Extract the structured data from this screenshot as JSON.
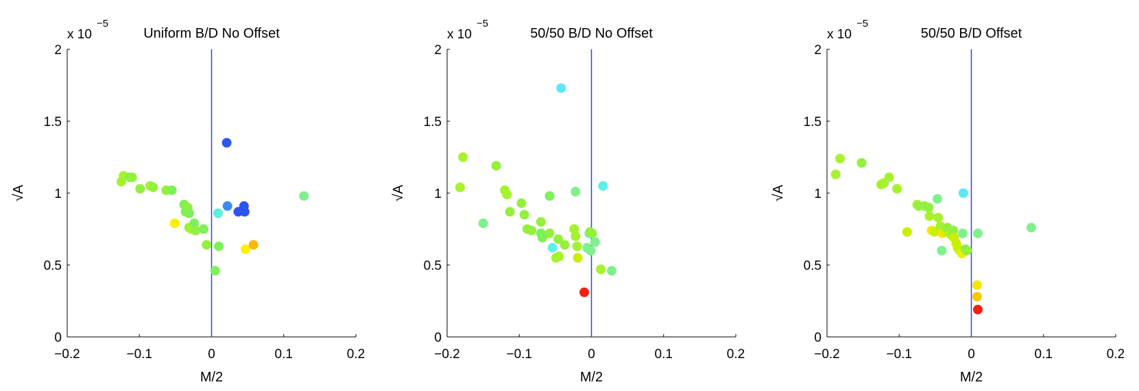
{
  "chart_data": [
    {
      "type": "scatter",
      "title": "Uniform B/D No Offset",
      "xlabel": "M/2",
      "ylabel": "√A",
      "y_multiplier": "x 10",
      "y_multiplier_exp": "−5",
      "xlim": [
        -0.2,
        0.2
      ],
      "ylim": [
        0,
        2
      ],
      "xticks": [
        "−0.2",
        "−0.1",
        "0",
        "0.1",
        "0.2"
      ],
      "yticks": [
        "0",
        "0.5",
        "1",
        "1.5",
        "2"
      ],
      "vline_x": 0,
      "vline_color": "#2340ff",
      "points": [
        {
          "x": -0.125,
          "y": 1.08,
          "color": "#a6f22c"
        },
        {
          "x": -0.122,
          "y": 1.12,
          "color": "#a6f22c"
        },
        {
          "x": -0.113,
          "y": 1.11,
          "color": "#7ef05a"
        },
        {
          "x": -0.11,
          "y": 1.11,
          "color": "#94f03e"
        },
        {
          "x": -0.099,
          "y": 1.03,
          "color": "#94f03e"
        },
        {
          "x": -0.085,
          "y": 1.05,
          "color": "#a6f22c"
        },
        {
          "x": -0.081,
          "y": 1.04,
          "color": "#94f03e"
        },
        {
          "x": -0.063,
          "y": 1.02,
          "color": "#94f03e"
        },
        {
          "x": -0.055,
          "y": 1.02,
          "color": "#7ef05a"
        },
        {
          "x": -0.051,
          "y": 0.79,
          "color": "#ffef00"
        },
        {
          "x": -0.038,
          "y": 0.92,
          "color": "#7ef05a"
        },
        {
          "x": -0.036,
          "y": 0.87,
          "color": "#7ef05a"
        },
        {
          "x": -0.033,
          "y": 0.9,
          "color": "#94f03e"
        },
        {
          "x": -0.031,
          "y": 0.86,
          "color": "#7ef05a"
        },
        {
          "x": -0.031,
          "y": 0.76,
          "color": "#94f03e"
        },
        {
          "x": -0.028,
          "y": 0.75,
          "color": "#a6f22c"
        },
        {
          "x": -0.024,
          "y": 0.79,
          "color": "#7ef05a"
        },
        {
          "x": -0.022,
          "y": 0.74,
          "color": "#94f03e"
        },
        {
          "x": -0.011,
          "y": 0.75,
          "color": "#7ef05a"
        },
        {
          "x": -0.007,
          "y": 0.64,
          "color": "#94f03e"
        },
        {
          "x": 0.005,
          "y": 0.46,
          "color": "#7ef05a"
        },
        {
          "x": 0.009,
          "y": 0.86,
          "color": "#5cf0d6"
        },
        {
          "x": 0.01,
          "y": 0.63,
          "color": "#7ef05a"
        },
        {
          "x": 0.021,
          "y": 1.35,
          "color": "#2d55ee"
        },
        {
          "x": 0.022,
          "y": 0.91,
          "color": "#3a8cf0"
        },
        {
          "x": 0.037,
          "y": 0.87,
          "color": "#2d55ee"
        },
        {
          "x": 0.045,
          "y": 0.91,
          "color": "#2d55ee"
        },
        {
          "x": 0.046,
          "y": 0.87,
          "color": "#2d55ee"
        },
        {
          "x": 0.047,
          "y": 0.61,
          "color": "#ffef00"
        },
        {
          "x": 0.058,
          "y": 0.64,
          "color": "#ffb800"
        },
        {
          "x": 0.128,
          "y": 0.98,
          "color": "#7ef08c"
        }
      ]
    },
    {
      "type": "scatter",
      "title": "50/50 B/D No Offset",
      "xlabel": "M/2",
      "ylabel": "√A",
      "y_multiplier": "x 10",
      "y_multiplier_exp": "−5",
      "xlim": [
        -0.2,
        0.2
      ],
      "ylim": [
        0,
        2
      ],
      "xticks": [
        "−0.2",
        "−0.1",
        "0",
        "0.1",
        "0.2"
      ],
      "yticks": [
        "0",
        "0.5",
        "1",
        "1.5",
        "2"
      ],
      "vline_x": 0,
      "vline_color": "#2340ff",
      "points": [
        {
          "x": -0.182,
          "y": 1.04,
          "color": "#a6f22c"
        },
        {
          "x": -0.178,
          "y": 1.25,
          "color": "#a6f22c"
        },
        {
          "x": -0.15,
          "y": 0.79,
          "color": "#7ef08c"
        },
        {
          "x": -0.132,
          "y": 1.19,
          "color": "#94f03e"
        },
        {
          "x": -0.12,
          "y": 1.02,
          "color": "#a6f22c"
        },
        {
          "x": -0.117,
          "y": 0.99,
          "color": "#a6f22c"
        },
        {
          "x": -0.113,
          "y": 0.87,
          "color": "#94f03e"
        },
        {
          "x": -0.097,
          "y": 0.93,
          "color": "#94f03e"
        },
        {
          "x": -0.093,
          "y": 0.85,
          "color": "#94f03e"
        },
        {
          "x": -0.089,
          "y": 0.75,
          "color": "#94f03e"
        },
        {
          "x": -0.083,
          "y": 0.74,
          "color": "#94f03e"
        },
        {
          "x": -0.07,
          "y": 0.8,
          "color": "#94f03e"
        },
        {
          "x": -0.07,
          "y": 0.72,
          "color": "#7ef05a"
        },
        {
          "x": -0.068,
          "y": 0.69,
          "color": "#7ef05a"
        },
        {
          "x": -0.058,
          "y": 0.98,
          "color": "#7ef05a"
        },
        {
          "x": -0.058,
          "y": 0.72,
          "color": "#94f03e"
        },
        {
          "x": -0.054,
          "y": 0.62,
          "color": "#5cf0e8"
        },
        {
          "x": -0.049,
          "y": 0.55,
          "color": "#a6f22c"
        },
        {
          "x": -0.046,
          "y": 0.68,
          "color": "#94f03e"
        },
        {
          "x": -0.045,
          "y": 0.56,
          "color": "#a6f22c"
        },
        {
          "x": -0.042,
          "y": 1.73,
          "color": "#5ce8f5"
        },
        {
          "x": -0.037,
          "y": 0.64,
          "color": "#94f03e"
        },
        {
          "x": -0.024,
          "y": 0.75,
          "color": "#a6f22c"
        },
        {
          "x": -0.022,
          "y": 1.01,
          "color": "#7ef08c"
        },
        {
          "x": -0.022,
          "y": 0.7,
          "color": "#a6f22c"
        },
        {
          "x": -0.02,
          "y": 0.63,
          "color": "#a6f22c"
        },
        {
          "x": -0.019,
          "y": 0.55,
          "color": "#c8f000"
        },
        {
          "x": -0.01,
          "y": 0.31,
          "color": "#f52010"
        },
        {
          "x": -0.006,
          "y": 0.62,
          "color": "#7ef08c"
        },
        {
          "x": -0.003,
          "y": 0.72,
          "color": "#5cf0e8"
        },
        {
          "x": -0.002,
          "y": 0.73,
          "color": "#94f03e"
        },
        {
          "x": -0.001,
          "y": 0.6,
          "color": "#7ef08c"
        },
        {
          "x": 0.001,
          "y": 0.72,
          "color": "#94f03e"
        },
        {
          "x": 0.005,
          "y": 0.66,
          "color": "#7ef08c"
        },
        {
          "x": 0.013,
          "y": 0.47,
          "color": "#a6f22c"
        },
        {
          "x": 0.016,
          "y": 1.05,
          "color": "#5cf0e8"
        },
        {
          "x": 0.028,
          "y": 0.46,
          "color": "#7ef08c"
        }
      ]
    },
    {
      "type": "scatter",
      "title": "50/50 B/D Offset",
      "xlabel": "M/2",
      "ylabel": "√A",
      "y_multiplier": "x 10",
      "y_multiplier_exp": "−5",
      "xlim": [
        -0.2,
        0.2
      ],
      "ylim": [
        0,
        2
      ],
      "xticks": [
        "−0.2",
        "−0.1",
        "0",
        "0.1",
        "0.2"
      ],
      "yticks": [
        "0",
        "0.5",
        "1",
        "1.5",
        "2"
      ],
      "vline_x": 0,
      "vline_color": "#2340ff",
      "points": [
        {
          "x": -0.188,
          "y": 1.13,
          "color": "#a6f22c"
        },
        {
          "x": -0.182,
          "y": 1.24,
          "color": "#a6f22c"
        },
        {
          "x": -0.152,
          "y": 1.21,
          "color": "#94f03e"
        },
        {
          "x": -0.125,
          "y": 1.06,
          "color": "#a6f22c"
        },
        {
          "x": -0.121,
          "y": 1.07,
          "color": "#a6f22c"
        },
        {
          "x": -0.114,
          "y": 1.11,
          "color": "#a6f22c"
        },
        {
          "x": -0.103,
          "y": 1.03,
          "color": "#a6f22c"
        },
        {
          "x": -0.089,
          "y": 0.73,
          "color": "#c8f000"
        },
        {
          "x": -0.075,
          "y": 0.92,
          "color": "#a6f22c"
        },
        {
          "x": -0.073,
          "y": 0.91,
          "color": "#94f03e"
        },
        {
          "x": -0.065,
          "y": 0.91,
          "color": "#94f03e"
        },
        {
          "x": -0.059,
          "y": 0.9,
          "color": "#94f03e"
        },
        {
          "x": -0.058,
          "y": 0.84,
          "color": "#a6f22c"
        },
        {
          "x": -0.055,
          "y": 0.74,
          "color": "#f5e600"
        },
        {
          "x": -0.051,
          "y": 0.73,
          "color": "#c8f000"
        },
        {
          "x": -0.047,
          "y": 0.96,
          "color": "#7ef08c"
        },
        {
          "x": -0.046,
          "y": 0.83,
          "color": "#a6f22c"
        },
        {
          "x": -0.043,
          "y": 0.77,
          "color": "#a6f22c"
        },
        {
          "x": -0.041,
          "y": 0.6,
          "color": "#7ef08c"
        },
        {
          "x": -0.04,
          "y": 0.72,
          "color": "#f5e600"
        },
        {
          "x": -0.036,
          "y": 0.73,
          "color": "#c8f000"
        },
        {
          "x": -0.033,
          "y": 0.76,
          "color": "#94f03e"
        },
        {
          "x": -0.028,
          "y": 0.71,
          "color": "#a6f22c"
        },
        {
          "x": -0.025,
          "y": 0.74,
          "color": "#94f03e"
        },
        {
          "x": -0.024,
          "y": 0.69,
          "color": "#c8f000"
        },
        {
          "x": -0.021,
          "y": 0.65,
          "color": "#c8f000"
        },
        {
          "x": -0.019,
          "y": 0.62,
          "color": "#c8f000"
        },
        {
          "x": -0.016,
          "y": 0.6,
          "color": "#c8f000"
        },
        {
          "x": -0.013,
          "y": 0.58,
          "color": "#e8f000"
        },
        {
          "x": -0.012,
          "y": 0.72,
          "color": "#7ef08c"
        },
        {
          "x": -0.011,
          "y": 1.0,
          "color": "#5ce8f5"
        },
        {
          "x": -0.008,
          "y": 0.61,
          "color": "#7ef05a"
        },
        {
          "x": -0.006,
          "y": 0.6,
          "color": "#94f03e"
        },
        {
          "x": 0.008,
          "y": 0.36,
          "color": "#f5e600"
        },
        {
          "x": 0.008,
          "y": 0.28,
          "color": "#f5c800"
        },
        {
          "x": 0.009,
          "y": 0.19,
          "color": "#f52010"
        },
        {
          "x": 0.009,
          "y": 0.72,
          "color": "#7ef08c"
        },
        {
          "x": 0.083,
          "y": 0.76,
          "color": "#7ef08c"
        }
      ]
    }
  ]
}
